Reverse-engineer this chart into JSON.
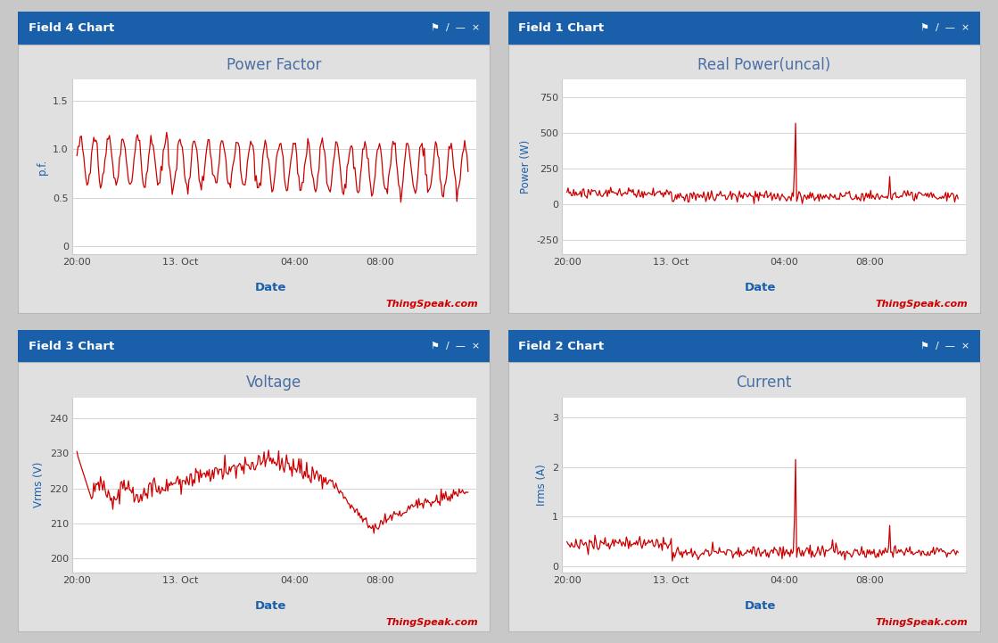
{
  "panels": [
    {
      "title": "Field 4 Chart",
      "chart_title": "Power Factor",
      "ylabel": "p.f.",
      "xlabel": "Date",
      "yticks": [
        0,
        0.5,
        1.0,
        1.5
      ],
      "ylim": [
        -0.08,
        1.72
      ],
      "xtick_labels": [
        "20:00",
        "13. Oct",
        "04:00",
        "08:00"
      ],
      "watermark": "ThingSpeak.com",
      "data_type": "power_factor"
    },
    {
      "title": "Field 1 Chart",
      "chart_title": "Real Power(uncal)",
      "ylabel": "Power (W)",
      "xlabel": "Date",
      "yticks": [
        -250,
        0,
        250,
        500,
        750
      ],
      "ylim": [
        -350,
        880
      ],
      "xtick_labels": [
        "20:00",
        "13. Oct",
        "04:00",
        "08:00"
      ],
      "watermark": "ThingSpeak.com",
      "data_type": "real_power"
    },
    {
      "title": "Field 3 Chart",
      "chart_title": "Voltage",
      "ylabel": "Vrms (V)",
      "xlabel": "Date",
      "yticks": [
        200,
        210,
        220,
        230,
        240
      ],
      "ylim": [
        196,
        246
      ],
      "xtick_labels": [
        "20:00",
        "13. Oct",
        "04:00",
        "08:00"
      ],
      "watermark": "ThingSpeak.com",
      "data_type": "voltage"
    },
    {
      "title": "Field 2 Chart",
      "chart_title": "Current",
      "ylabel": "Irms (A)",
      "xlabel": "Date",
      "yticks": [
        0,
        1,
        2,
        3
      ],
      "ylim": [
        -0.12,
        3.4
      ],
      "xtick_labels": [
        "20:00",
        "13. Oct",
        "04:00",
        "08:00"
      ],
      "watermark": "ThingSpeak.com",
      "data_type": "current"
    }
  ],
  "header_color": "#1a5faa",
  "header_text_color": "#ffffff",
  "line_color": "#cc0000",
  "title_color": "#4a6fa5",
  "axis_label_color": "#1a5faa",
  "watermark_color": "#cc0000",
  "grid_color": "#cccccc",
  "bg_outer": "#c8c8c8",
  "bg_panel_outer": "#e0e0e0",
  "bg_chart": "#ffffff",
  "border_color": "#cccccc"
}
